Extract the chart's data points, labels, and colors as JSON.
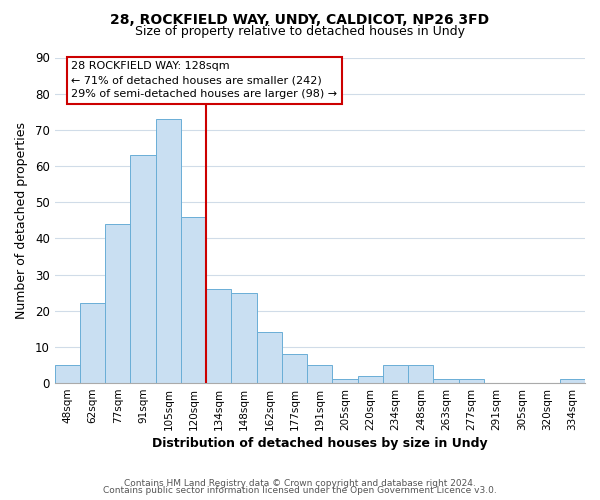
{
  "title": "28, ROCKFIELD WAY, UNDY, CALDICOT, NP26 3FD",
  "subtitle": "Size of property relative to detached houses in Undy",
  "xlabel": "Distribution of detached houses by size in Undy",
  "ylabel": "Number of detached properties",
  "categories": [
    "48sqm",
    "62sqm",
    "77sqm",
    "91sqm",
    "105sqm",
    "120sqm",
    "134sqm",
    "148sqm",
    "162sqm",
    "177sqm",
    "191sqm",
    "205sqm",
    "220sqm",
    "234sqm",
    "248sqm",
    "263sqm",
    "277sqm",
    "291sqm",
    "305sqm",
    "320sqm",
    "334sqm"
  ],
  "values": [
    5,
    22,
    44,
    63,
    73,
    46,
    26,
    25,
    14,
    8,
    5,
    1,
    2,
    5,
    5,
    1,
    1,
    0,
    0,
    0,
    1
  ],
  "bar_color": "#c9dff2",
  "bar_edge_color": "#6aaed6",
  "annotation_title": "28 ROCKFIELD WAY: 128sqm",
  "annotation_line1": "← 71% of detached houses are smaller (242)",
  "annotation_line2": "29% of semi-detached houses are larger (98) →",
  "annotation_box_color": "#ffffff",
  "annotation_box_edge": "#cc0000",
  "marker_line_color": "#cc0000",
  "ylim": [
    0,
    90
  ],
  "yticks": [
    0,
    10,
    20,
    30,
    40,
    50,
    60,
    70,
    80,
    90
  ],
  "footer1": "Contains HM Land Registry data © Crown copyright and database right 2024.",
  "footer2": "Contains public sector information licensed under the Open Government Licence v3.0.",
  "background_color": "#ffffff",
  "grid_color": "#d0dce8"
}
